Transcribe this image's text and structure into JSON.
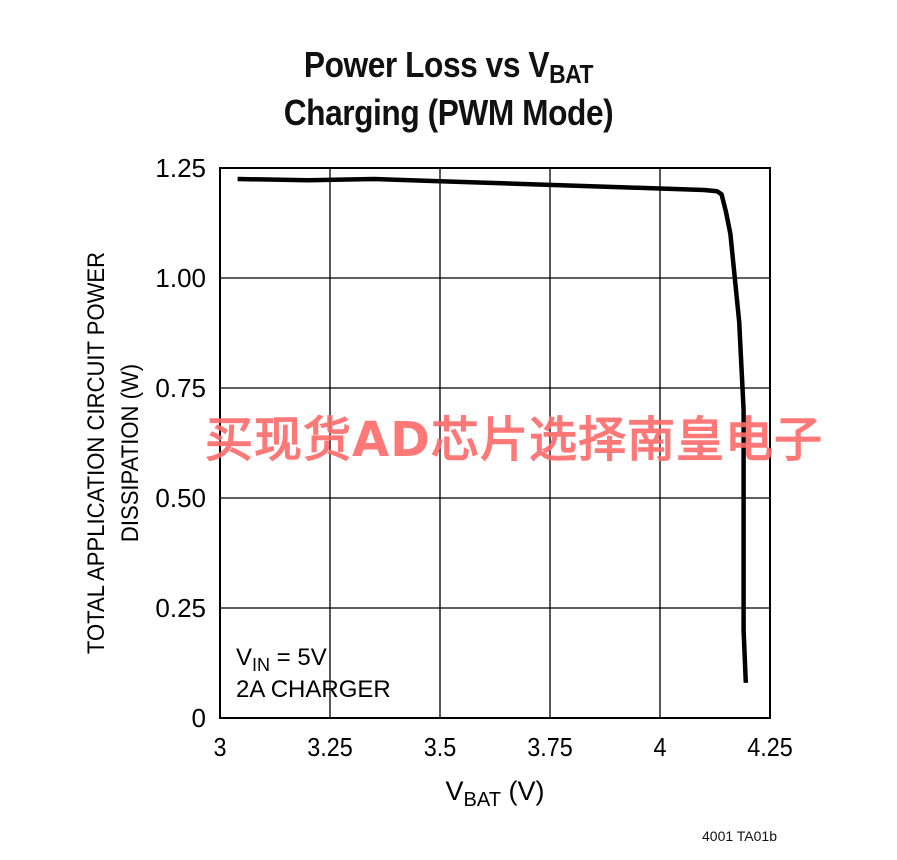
{
  "title": {
    "line1_prefix": "Power Loss vs V",
    "line1_sub": "BAT",
    "line2": "Charging (PWM Mode)"
  },
  "watermark": "买现货AD芯片选择南皇电子",
  "footer_code": "4001 TA01b",
  "chart_data": {
    "type": "line",
    "title": "Power Loss vs VBAT Charging (PWM Mode)",
    "xlabel": "VBAT (V)",
    "xlabel_main": "V",
    "xlabel_sub": "BAT",
    "xlabel_tail": " (V)",
    "ylabel_line1": "TOTAL APPLICATION CIRCUIT POWER",
    "ylabel_line2": "DISSIPATION (W)",
    "xlim": [
      3,
      4.25
    ],
    "ylim": [
      0,
      1.25
    ],
    "xticks": [
      "3",
      "3.25",
      "3.5",
      "3.75",
      "4",
      "4.25"
    ],
    "xtick_values": [
      3,
      3.25,
      3.5,
      3.75,
      4,
      4.25
    ],
    "yticks": [
      "0",
      "0.25",
      "0.50",
      "0.75",
      "1.00",
      "1.25"
    ],
    "ytick_values": [
      0,
      0.25,
      0.5,
      0.75,
      1.0,
      1.25
    ],
    "grid": true,
    "annotation": {
      "vin_main": "V",
      "vin_sub": "IN",
      "vin_tail": " = 5V",
      "line2": "2A CHARGER"
    },
    "series": [
      {
        "x": [
          3.04,
          3.2,
          3.35,
          3.5,
          3.65,
          3.8,
          3.95,
          4.1,
          4.13,
          4.14,
          4.15,
          4.16,
          4.17,
          4.18,
          4.185,
          4.19,
          4.19,
          4.19,
          4.19,
          4.19,
          4.19,
          4.195
        ],
        "y": [
          1.225,
          1.222,
          1.225,
          1.22,
          1.215,
          1.21,
          1.205,
          1.2,
          1.197,
          1.19,
          1.15,
          1.1,
          1.0,
          0.9,
          0.8,
          0.7,
          0.6,
          0.5,
          0.4,
          0.3,
          0.2,
          0.08
        ]
      }
    ]
  }
}
